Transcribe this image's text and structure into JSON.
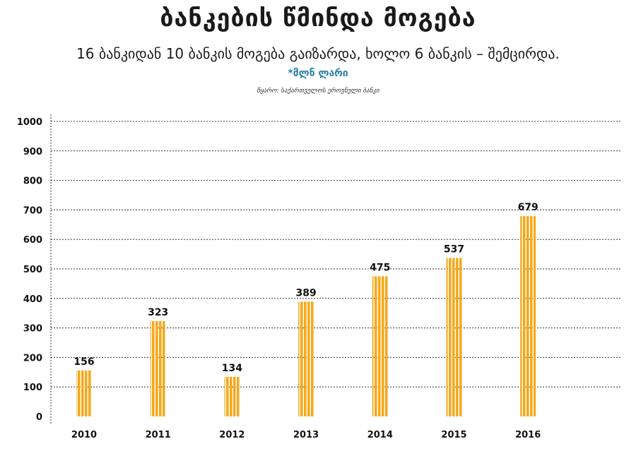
{
  "chart_data": {
    "type": "bar",
    "title": "ბანკების წმინდა მოგება",
    "subtitle": "16 ბანკიდან 10 ბანკის მოგება გაიზარდა, ხოლო 6 ბანკის – შემცირდა.",
    "unit_note": "*მლნ ლარი",
    "source": "წყარო: საქართველოს ეროვნული ბანკი",
    "categories": [
      "2010",
      "2011",
      "2012",
      "2013",
      "2014",
      "2015",
      "2016"
    ],
    "values": [
      156,
      323,
      134,
      389,
      475,
      537,
      679
    ],
    "ylim": [
      0,
      1000
    ],
    "yticks": [
      0,
      100,
      200,
      300,
      400,
      500,
      600,
      700,
      800,
      900,
      1000
    ],
    "xlabel": "",
    "ylabel": "",
    "grid": true,
    "bar_color": "#f5a91c"
  }
}
